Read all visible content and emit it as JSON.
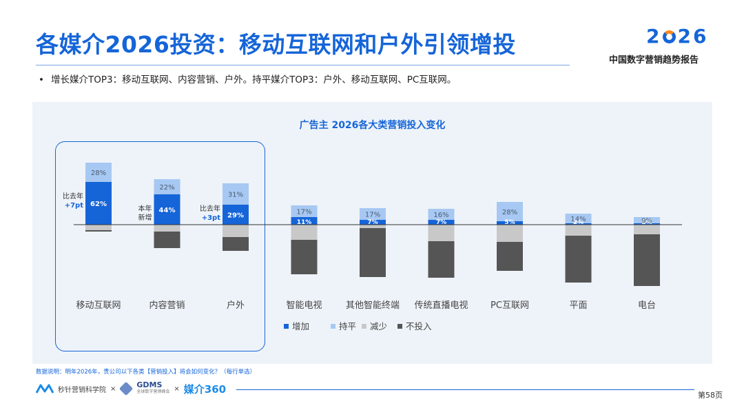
{
  "header": {
    "title": "各媒介2026投资：移动互联网和户外引领增投",
    "logo_year_left": "2",
    "logo_year_right": "26",
    "logo_subtitle": "中国数字营销趋势报告"
  },
  "bullet": "增长媒介TOP3：移动互联网、内容营销、户外。持平媒介TOP3：户外、移动互联网、PC互联网。",
  "colors": {
    "increase": "#1565d8",
    "flat": "#a7c8f2",
    "decrease": "#c8c8c8",
    "none": "#555555"
  },
  "annotations": [
    {
      "category": "移动互联网",
      "line1": "比去年",
      "line2": "+7pt"
    },
    {
      "category": "内容营销",
      "line1": "本年",
      "line2": "新增"
    },
    {
      "category": "户外",
      "line1": "比去年",
      "line2": "+3pt"
    }
  ],
  "chart_data": {
    "type": "bar",
    "title": "广告主 2026各大类营销投入变化",
    "categories": [
      "移动互联网",
      "内容营销",
      "户外",
      "智能电视",
      "其他智能终端",
      "传统直播电视",
      "PC互联网",
      "平面",
      "电台"
    ],
    "series": [
      {
        "name": "增加",
        "values": [
          62,
          44,
          29,
          11,
          7,
          7,
          5,
          2,
          2
        ],
        "labels": [
          "62%",
          "44%",
          "29%",
          "11%",
          "7%",
          "7%",
          "5%",
          "2%",
          "2%"
        ]
      },
      {
        "name": "持平",
        "values": [
          28,
          22,
          31,
          17,
          17,
          16,
          28,
          14,
          9
        ],
        "labels": [
          "28%",
          "22%",
          "31%",
          "17%",
          "17%",
          "16%",
          "28%",
          "14%",
          "9%"
        ]
      },
      {
        "name": "减少",
        "values": [
          8,
          10,
          18,
          22,
          5,
          24,
          25,
          16,
          14
        ]
      },
      {
        "name": "不投入",
        "values": [
          2,
          24,
          20,
          50,
          71,
          53,
          42,
          68,
          75
        ]
      }
    ],
    "stacking": "increase and flat above baseline; decrease and no-investment below baseline",
    "legend_position": "bottom"
  },
  "note": "数据说明：明年2026年，贵公司以下各类【营销投入】将会如何变化？（每行单选）",
  "footer": {
    "logo1": "秒针营销科学院",
    "sep": "×",
    "logo2_main": "GDMS",
    "logo2_sub": "全球数字营销峰会",
    "logo3": "媒介360",
    "page": "第58页"
  }
}
